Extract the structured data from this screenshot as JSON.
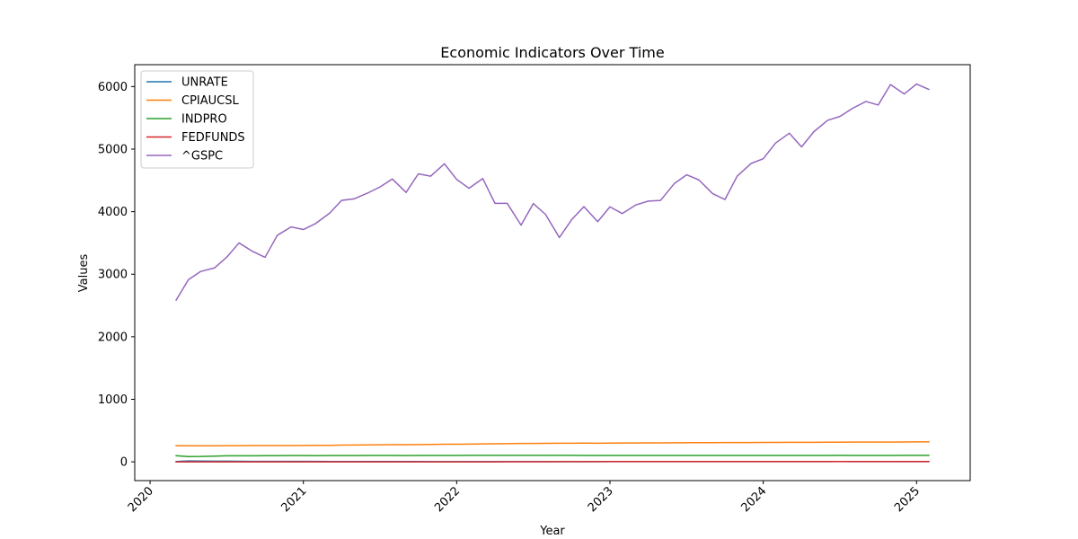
{
  "chart_data": {
    "type": "line",
    "title": "Economic Indicators Over Time",
    "xlabel": "Year",
    "ylabel": "Values",
    "x_ticks": [
      "2020",
      "2021",
      "2022",
      "2023",
      "2024",
      "2025"
    ],
    "y_ticks": [
      "0",
      "1000",
      "2000",
      "3000",
      "4000",
      "5000",
      "6000"
    ],
    "ylim": [
      -300,
      6350
    ],
    "xlim": [
      2019.9,
      2025.35
    ],
    "grid": false,
    "legend_position": "top-left",
    "x": [
      2020.17,
      2020.25,
      2020.33,
      2020.42,
      2020.5,
      2020.58,
      2020.67,
      2020.75,
      2020.83,
      2020.92,
      2021.0,
      2021.08,
      2021.17,
      2021.25,
      2021.33,
      2021.42,
      2021.5,
      2021.58,
      2021.67,
      2021.75,
      2021.83,
      2021.92,
      2022.0,
      2022.08,
      2022.17,
      2022.25,
      2022.33,
      2022.42,
      2022.5,
      2022.58,
      2022.67,
      2022.75,
      2022.83,
      2022.92,
      2023.0,
      2023.08,
      2023.17,
      2023.25,
      2023.33,
      2023.42,
      2023.5,
      2023.58,
      2023.67,
      2023.75,
      2023.83,
      2023.92,
      2024.0,
      2024.08,
      2024.17,
      2024.25,
      2024.33,
      2024.42,
      2024.5,
      2024.58,
      2024.67,
      2024.75,
      2024.83,
      2024.92,
      2025.0,
      2025.08
    ],
    "series": [
      {
        "name": "UNRATE",
        "color": "#1f77b4",
        "values": [
          4.4,
          14.7,
          13.2,
          11.0,
          10.2,
          8.4,
          7.8,
          6.9,
          6.7,
          6.7,
          6.4,
          6.2,
          6.0,
          6.1,
          5.8,
          5.9,
          5.4,
          5.2,
          4.7,
          4.5,
          4.2,
          3.9,
          4.0,
          3.8,
          3.6,
          3.7,
          3.6,
          3.6,
          3.5,
          3.7,
          3.5,
          3.7,
          3.6,
          3.5,
          3.4,
          3.6,
          3.5,
          3.4,
          3.7,
          3.6,
          3.5,
          3.8,
          3.8,
          3.8,
          3.7,
          3.7,
          3.7,
          3.9,
          3.8,
          3.9,
          4.0,
          4.1,
          4.3,
          4.2,
          4.1,
          4.1,
          4.2,
          4.2,
          4.0,
          4.1
        ]
      },
      {
        "name": "CPIAUCSL",
        "color": "#ff7f0e",
        "values": [
          258,
          256,
          256,
          257,
          259,
          259,
          260,
          260,
          260,
          261,
          262,
          263,
          264,
          267,
          269,
          271,
          273,
          274,
          275,
          277,
          279,
          281,
          282,
          284,
          287,
          288,
          291,
          295,
          295,
          296,
          297,
          298,
          299,
          298,
          300,
          301,
          302,
          303,
          304,
          305,
          306,
          307,
          307,
          308,
          308,
          309,
          310,
          311,
          312,
          313,
          313,
          314,
          314,
          315,
          315,
          316,
          316,
          317,
          319,
          319
        ]
      },
      {
        "name": "INDPRO",
        "color": "#2ca02c",
        "values": [
          98,
          85,
          86,
          92,
          96,
          97,
          97,
          98,
          99,
          100,
          101,
          98,
          101,
          101,
          101,
          102,
          102,
          102,
          101,
          102,
          103,
          103,
          102,
          104,
          104,
          104,
          104,
          104,
          104,
          104,
          104,
          104,
          103,
          102,
          103,
          102,
          103,
          103,
          103,
          103,
          103,
          103,
          103,
          103,
          103,
          103,
          102,
          102,
          103,
          103,
          103,
          103,
          104,
          103,
          103,
          102,
          103,
          104,
          104,
          104
        ]
      },
      {
        "name": "FEDFUNDS",
        "color": "#d62728",
        "values": [
          0.65,
          0.05,
          0.05,
          0.08,
          0.09,
          0.1,
          0.09,
          0.09,
          0.09,
          0.09,
          0.09,
          0.08,
          0.07,
          0.07,
          0.06,
          0.08,
          0.1,
          0.09,
          0.08,
          0.08,
          0.08,
          0.08,
          0.08,
          0.08,
          0.2,
          0.33,
          0.77,
          1.21,
          1.68,
          2.33,
          2.56,
          3.08,
          3.78,
          4.1,
          4.33,
          4.57,
          4.65,
          4.83,
          5.06,
          5.08,
          5.12,
          5.33,
          5.33,
          5.33,
          5.33,
          5.33,
          5.33,
          5.33,
          5.33,
          5.33,
          5.33,
          5.33,
          5.33,
          5.33,
          5.13,
          4.83,
          4.64,
          4.48,
          4.33,
          4.33
        ]
      },
      {
        "name": "^GSPC",
        "color": "#9467bd",
        "values": [
          2585,
          2912,
          3044,
          3100,
          3271,
          3500,
          3363,
          3270,
          3622,
          3756,
          3714,
          3811,
          3973,
          4181,
          4204,
          4298,
          4395,
          4523,
          4308,
          4605,
          4567,
          4766,
          4516,
          4374,
          4530,
          4132,
          4132,
          3785,
          4130,
          3955,
          3586,
          3872,
          4080,
          3840,
          4077,
          3970,
          4109,
          4169,
          4180,
          4450,
          4589,
          4508,
          4288,
          4194,
          4568,
          4770,
          4846,
          5096,
          5254,
          5036,
          5278,
          5460,
          5522,
          5648,
          5762,
          5705,
          6032,
          5882,
          6041,
          5955
        ]
      }
    ]
  }
}
